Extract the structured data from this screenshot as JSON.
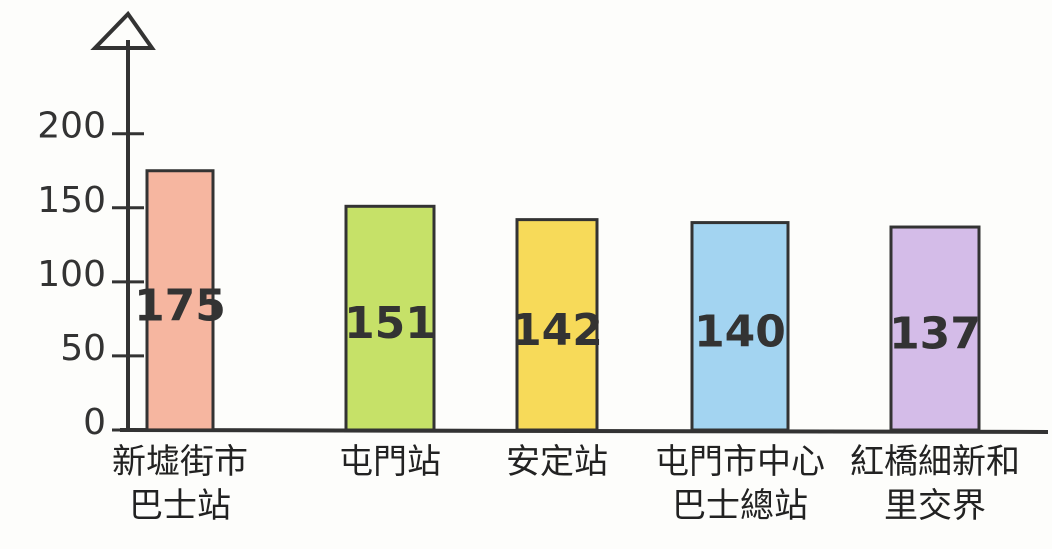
{
  "chart_data": {
    "type": "bar",
    "categories": [
      "新墟街市巴士站",
      "屯門站",
      "安定站",
      "屯門市中心巴士總站",
      "紅橋細新和里交界"
    ],
    "values": [
      175,
      151,
      142,
      140,
      137
    ],
    "colors": [
      "#f4a98f",
      "#bcdc4e",
      "#f6d43c",
      "#93cdef",
      "#cdb0e4"
    ],
    "ylim": [
      0,
      270
    ],
    "yticks": [
      0,
      50,
      100,
      150,
      200
    ]
  }
}
